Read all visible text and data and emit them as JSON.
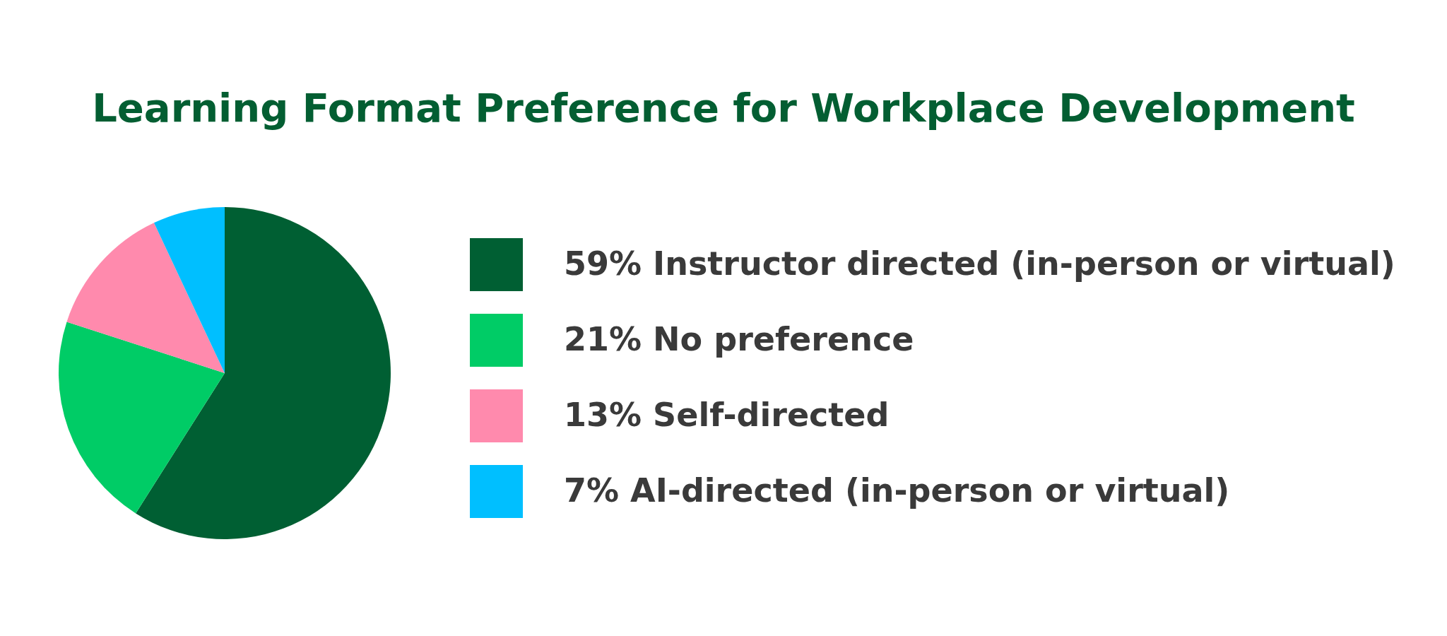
{
  "chart_data": {
    "type": "pie",
    "title": "Learning Format Preference for Workplace Development",
    "categories": [
      "59% Instructor directed (in-person or virtual)",
      "21% No preference",
      "13% Self-directed",
      "7% AI-directed (in-person or virtual)"
    ],
    "values": [
      59,
      21,
      13,
      7
    ],
    "colors": [
      "#005f33",
      "#00cc66",
      "#ff8aad",
      "#00bfff"
    ],
    "legend": "right"
  }
}
